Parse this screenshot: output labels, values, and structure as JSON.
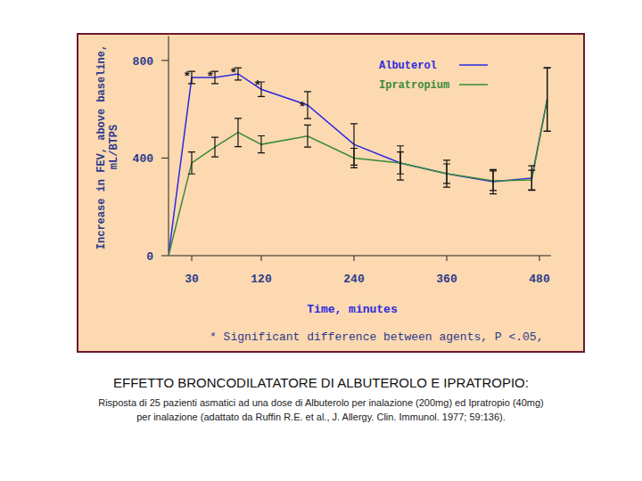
{
  "chart_data": {
    "type": "line",
    "title": "EFFETTO BRONCODILATATORE DI ALBUTEROLO E IPRATROPIO:",
    "subtitle": [
      "Risposta di 25 pazienti asmatici ad una dose di Albuterolo per inalazione (200mg) ed Ipratropio (40mg)",
      "per inalazione (adattato da Ruffin R.E. et al., J. Allergy. Clin. Immunol. 1977; 59:136)."
    ],
    "x_label": "Time, minutes",
    "y_label": [
      "Increase in FEV, above baseline,",
      "mL/BTPS"
    ],
    "note": "* Significant difference between agents, P <.05,",
    "x": [
      0,
      30,
      60,
      90,
      120,
      180,
      240,
      300,
      360,
      420,
      470,
      490
    ],
    "series": [
      {
        "name": "Albuterol",
        "color": "#2a2ae0",
        "values": [
          0,
          730,
          730,
          745,
          682,
          617,
          456,
          380,
          336,
          303,
          318,
          640
        ],
        "errors": [
          0,
          25,
          25,
          25,
          30,
          55,
          85,
          70,
          55,
          50,
          50,
          130
        ]
      },
      {
        "name": "Ipratropium",
        "color": "#3a8a3a",
        "values": [
          0,
          380,
          445,
          505,
          456,
          490,
          400,
          380,
          336,
          307,
          310,
          640
        ],
        "errors": [
          0,
          45,
          40,
          58,
          35,
          45,
          40,
          45,
          40,
          40,
          40,
          130
        ]
      }
    ],
    "annotations": [
      {
        "text": "*",
        "x": 24,
        "y": 745
      },
      {
        "text": "*",
        "x": 54,
        "y": 745
      },
      {
        "text": "*",
        "x": 84,
        "y": 760
      },
      {
        "text": "*",
        "x": 115,
        "y": 710
      },
      {
        "text": "*",
        "x": 173,
        "y": 620
      }
    ],
    "xlim": [
      0,
      495
    ],
    "xticks": [
      30,
      120,
      240,
      360,
      480
    ],
    "ylim": [
      0,
      900
    ],
    "yticks": [
      0,
      400,
      800
    ],
    "grid": false,
    "legend": "top-right"
  }
}
